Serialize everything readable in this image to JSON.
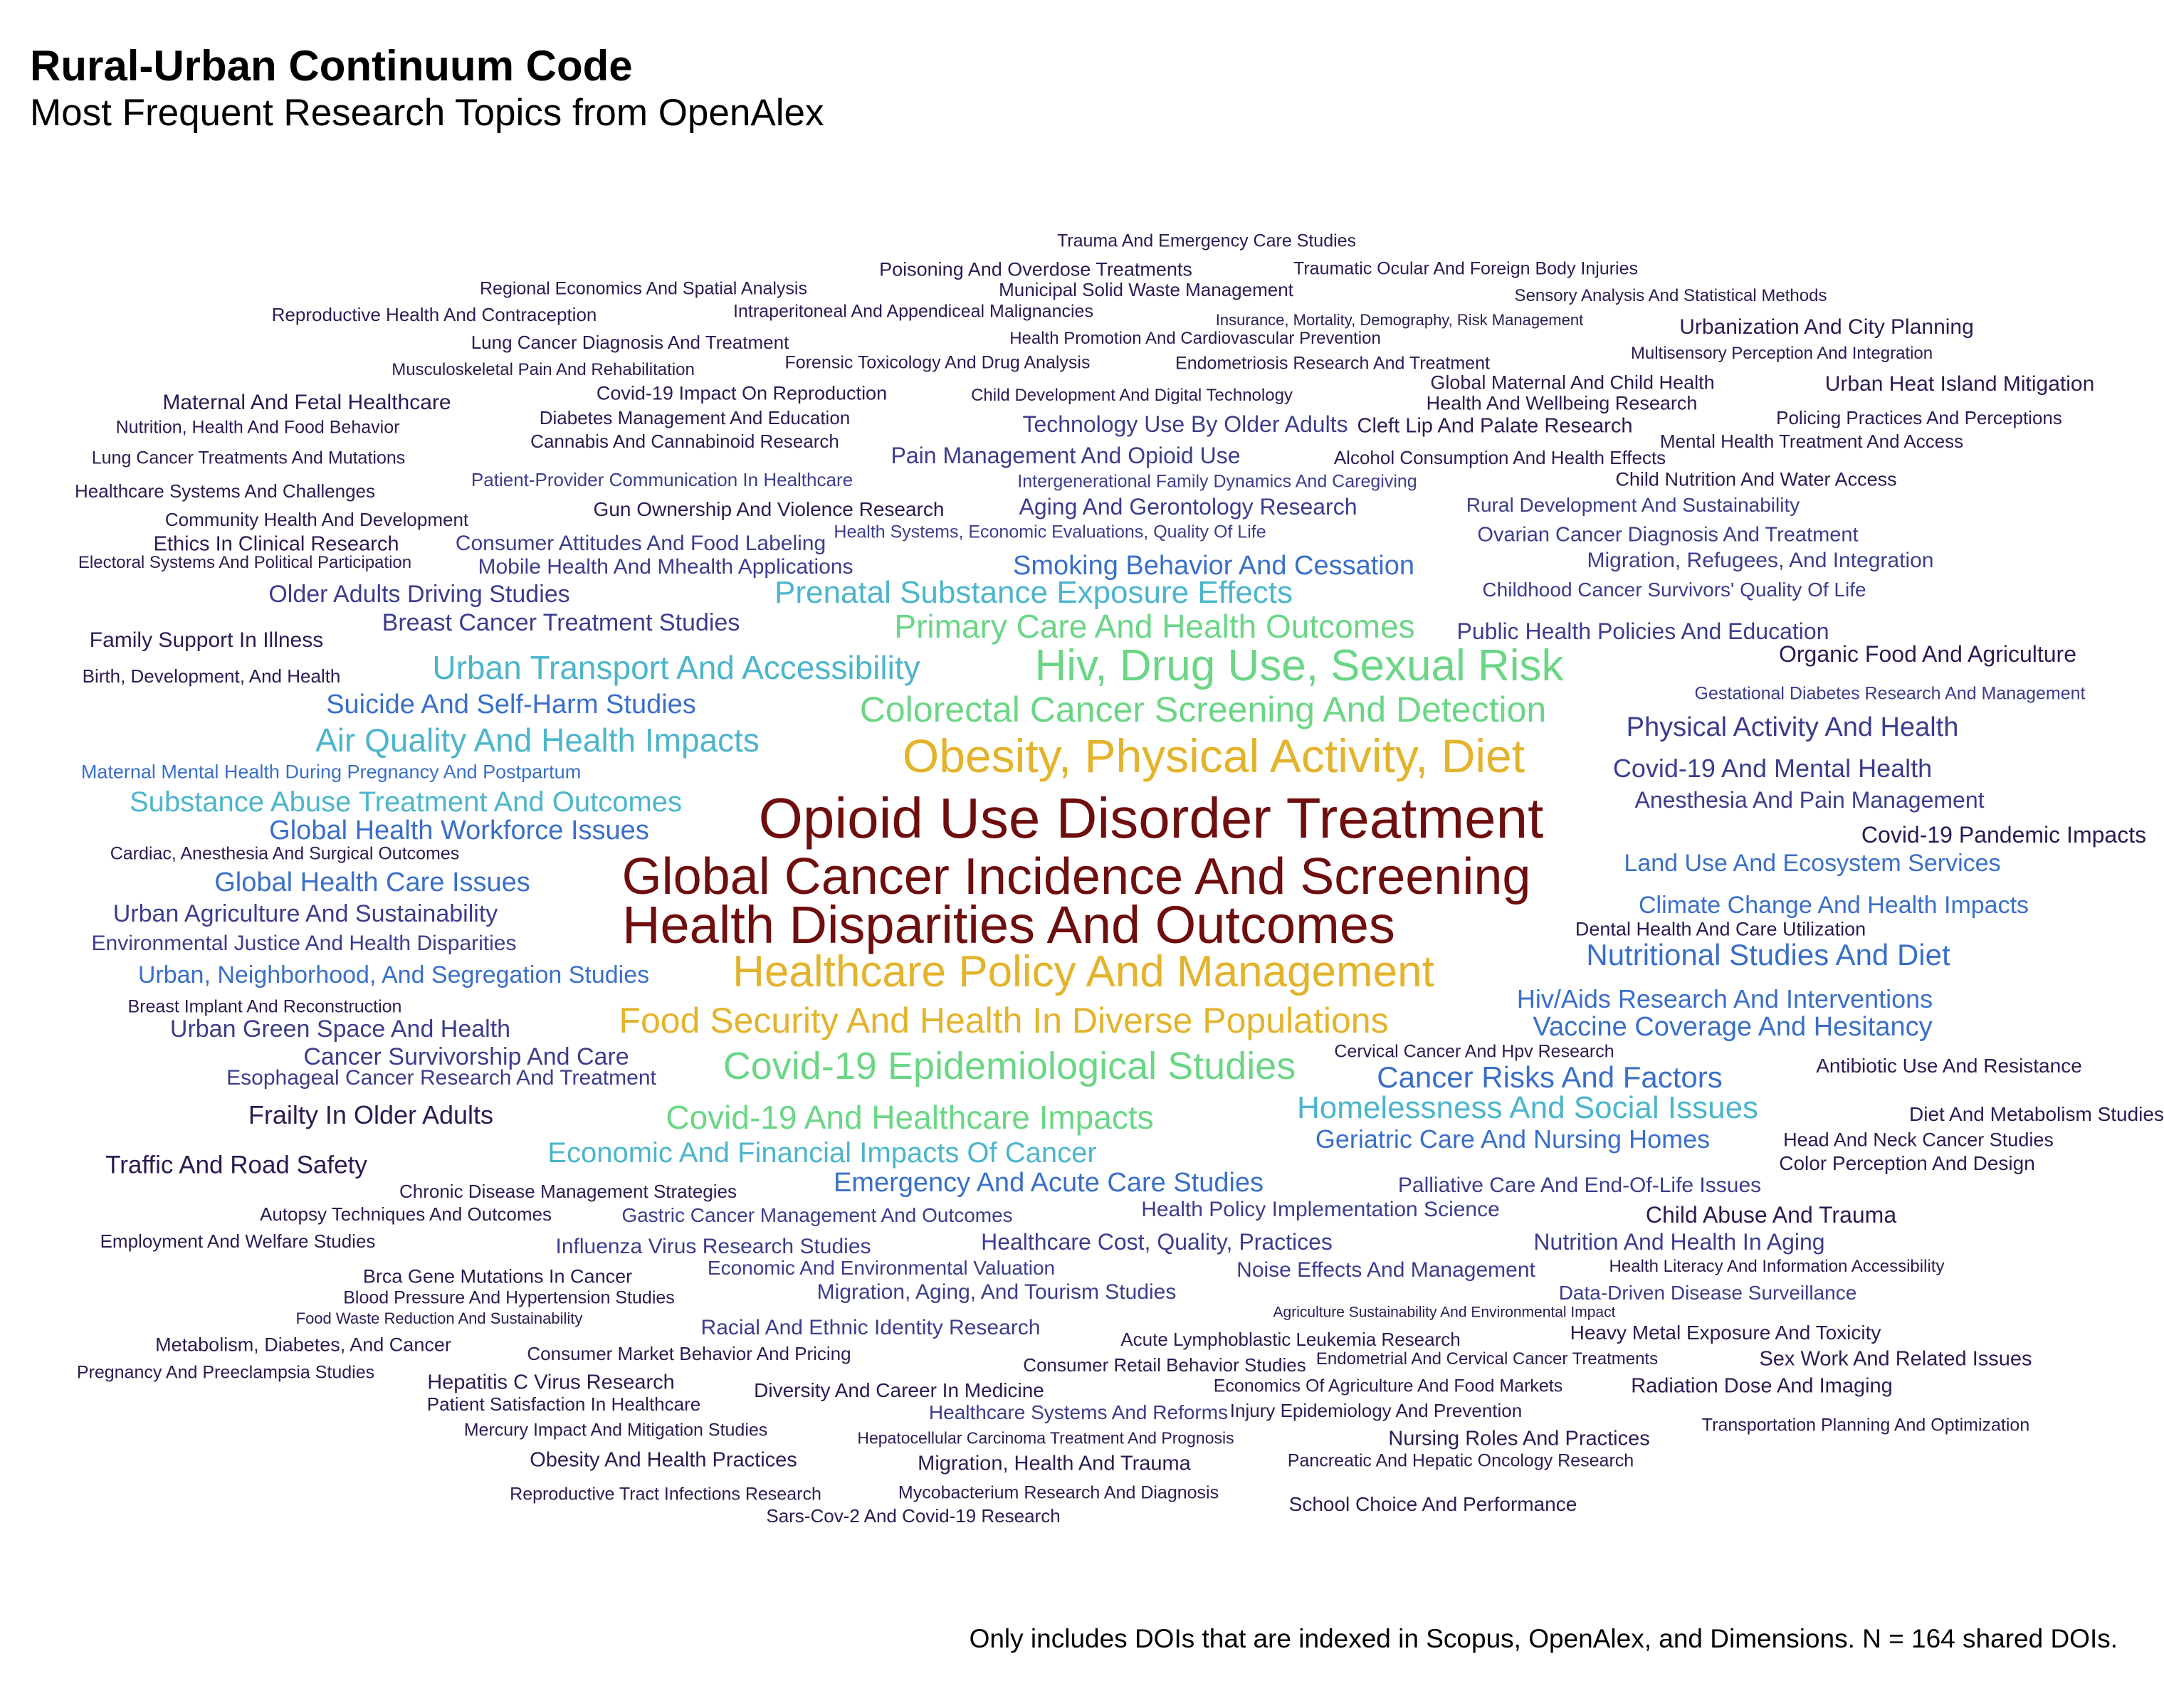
{
  "chart_data": {
    "type": "wordcloud",
    "title": "Rural-Urban Continuum Code",
    "subtitle": "Most Frequent Research Topics from OpenAlex",
    "caption": "Only includes DOIs that are indexed in Scopus, OpenAlex, and Dimensions. N = 164 shared DOIs.",
    "palette": {
      "tier_6": "#6e0e0e",
      "tier_5": "#e3b32c",
      "tier_4": "#6bd686",
      "tier_3": "#4cb5cc",
      "tier_2": "#3a6fc8",
      "tier_1": "#3b3d8c",
      "tier_0": "#2d1a52"
    },
    "words": [
      {
        "text": "Opioid Use Disorder Treatment",
        "tier": 6
      },
      {
        "text": "Global Cancer Incidence And Screening",
        "tier": 6
      },
      {
        "text": "Health Disparities And Outcomes",
        "tier": 6
      },
      {
        "text": "Obesity, Physical Activity, Diet",
        "tier": 5
      },
      {
        "text": "Healthcare Policy And Management",
        "tier": 5
      },
      {
        "text": "Food Security And Health In Diverse Populations",
        "tier": 5
      },
      {
        "text": "Hiv, Drug Use, Sexual Risk",
        "tier": 4
      },
      {
        "text": "Colorectal Cancer Screening And Detection",
        "tier": 4
      },
      {
        "text": "Primary Care And Health Outcomes",
        "tier": 4
      },
      {
        "text": "Covid-19 Epidemiological Studies",
        "tier": 4
      },
      {
        "text": "Covid-19 And Healthcare Impacts",
        "tier": 4
      },
      {
        "text": "Urban Transport And Accessibility",
        "tier": 3
      },
      {
        "text": "Prenatal Substance Exposure Effects",
        "tier": 3
      },
      {
        "text": "Air Quality And Health Impacts",
        "tier": 3
      },
      {
        "text": "Substance Abuse Treatment And Outcomes",
        "tier": 3
      },
      {
        "text": "Economic And Financial Impacts Of Cancer",
        "tier": 3
      },
      {
        "text": "Homelessness And Social Issues",
        "tier": 3
      },
      {
        "text": "Smoking Behavior And Cessation",
        "tier": 2
      },
      {
        "text": "Suicide And Self-Harm Studies",
        "tier": 2
      },
      {
        "text": "Global Health Workforce Issues",
        "tier": 2
      },
      {
        "text": "Global Health Care Issues",
        "tier": 2
      },
      {
        "text": "Urban, Neighborhood, And Segregation Studies",
        "tier": 2
      },
      {
        "text": "Nutritional Studies And Diet",
        "tier": 2
      },
      {
        "text": "Climate Change And Health Impacts",
        "tier": 2
      },
      {
        "text": "Hiv/Aids Research And Interventions",
        "tier": 2
      },
      {
        "text": "Vaccine Coverage And Hesitancy",
        "tier": 2
      },
      {
        "text": "Cancer Risks And Factors",
        "tier": 2
      },
      {
        "text": "Emergency And Acute Care Studies",
        "tier": 2
      },
      {
        "text": "Geriatric Care And Nursing Homes",
        "tier": 2
      },
      {
        "text": "Land Use And Ecosystem Services",
        "tier": 2
      },
      {
        "text": "Maternal Mental Health During Pregnancy And Postpartum",
        "tier": 2
      },
      {
        "text": "Physical Activity And Health",
        "tier": 1
      },
      {
        "text": "Covid-19 And Mental Health",
        "tier": 1
      },
      {
        "text": "Anesthesia And Pain Management",
        "tier": 1
      },
      {
        "text": "Urban Agriculture And Sustainability",
        "tier": 1
      },
      {
        "text": "Environmental Justice And Health Disparities",
        "tier": 1
      },
      {
        "text": "Urban Green Space And Health",
        "tier": 1
      },
      {
        "text": "Cancer Survivorship And Care",
        "tier": 1
      },
      {
        "text": "Breast Cancer Treatment Studies",
        "tier": 1
      },
      {
        "text": "Older Adults Driving Studies",
        "tier": 1
      },
      {
        "text": "Mobile Health And Mhealth Applications",
        "tier": 1
      },
      {
        "text": "Technology Use By Older Adults",
        "tier": 1
      },
      {
        "text": "Pain Management And Opioid Use",
        "tier": 1
      },
      {
        "text": "Aging And Gerontology Research",
        "tier": 1
      },
      {
        "text": "Public Health Policies And Education",
        "tier": 1
      },
      {
        "text": "Migration, Refugees, And Integration",
        "tier": 1
      },
      {
        "text": "Esophageal Cancer Research And Treatment",
        "tier": 1
      },
      {
        "text": "Palliative Care And End-Of-Life Issues",
        "tier": 1
      },
      {
        "text": "Health Policy Implementation Science",
        "tier": 1
      },
      {
        "text": "Healthcare Cost, Quality, Practices",
        "tier": 1
      },
      {
        "text": "Gastric Cancer Management And Outcomes",
        "tier": 1
      },
      {
        "text": "Influenza Virus Research Studies",
        "tier": 1
      },
      {
        "text": "Noise Effects And Management",
        "tier": 1
      },
      {
        "text": "Nutrition And Health In Aging",
        "tier": 1
      },
      {
        "text": "Migration, Aging, And Tourism Studies",
        "tier": 1
      },
      {
        "text": "Racial And Ethnic Identity Research",
        "tier": 1
      },
      {
        "text": "Health Systems, Economic Evaluations, Quality Of Life",
        "tier": 1
      },
      {
        "text": "Ovarian Cancer Diagnosis And Treatment",
        "tier": 1
      },
      {
        "text": "Rural Development And Sustainability",
        "tier": 1
      },
      {
        "text": "Intergenerational Family Dynamics And Caregiving",
        "tier": 1
      },
      {
        "text": "Patient-Provider Communication In Healthcare",
        "tier": 1
      },
      {
        "text": "Economic And Environmental Valuation",
        "tier": 1
      },
      {
        "text": "Healthcare Systems And Reforms",
        "tier": 1
      },
      {
        "text": "Data-Driven Disease Surveillance",
        "tier": 1
      },
      {
        "text": "Consumer Attitudes And Food Labeling",
        "tier": 1
      },
      {
        "text": "Gestational Diabetes Research And Management",
        "tier": 1
      },
      {
        "text": "Childhood Cancer Survivors' Quality Of Life",
        "tier": 1
      },
      {
        "text": "Community Health And Development",
        "tier": 0
      },
      {
        "text": "Trauma And Emergency Care Studies",
        "tier": 0
      },
      {
        "text": "Poisoning And Overdose Treatments",
        "tier": 0
      },
      {
        "text": "Traumatic Ocular And Foreign Body Injuries",
        "tier": 0
      },
      {
        "text": "Regional Economics And Spatial Analysis",
        "tier": 0
      },
      {
        "text": "Municipal Solid Waste Management",
        "tier": 0
      },
      {
        "text": "Sensory Analysis And Statistical Methods",
        "tier": 0
      },
      {
        "text": "Reproductive Health And Contraception",
        "tier": 0
      },
      {
        "text": "Intraperitoneal And Appendiceal Malignancies",
        "tier": 0
      },
      {
        "text": "Insurance, Mortality, Demography, Risk Management",
        "tier": 0
      },
      {
        "text": "Urbanization And City Planning",
        "tier": 0
      },
      {
        "text": "Lung Cancer Diagnosis And Treatment",
        "tier": 0
      },
      {
        "text": "Health Promotion And Cardiovascular Prevention",
        "tier": 0
      },
      {
        "text": "Multisensory Perception And Integration",
        "tier": 0
      },
      {
        "text": "Musculoskeletal Pain And Rehabilitation",
        "tier": 0
      },
      {
        "text": "Forensic Toxicology And Drug Analysis",
        "tier": 0
      },
      {
        "text": "Endometriosis Research And Treatment",
        "tier": 0
      },
      {
        "text": "Global Maternal And Child Health",
        "tier": 0
      },
      {
        "text": "Urban Heat Island Mitigation",
        "tier": 0
      },
      {
        "text": "Maternal And Fetal Healthcare",
        "tier": 0
      },
      {
        "text": "Covid-19 Impact On Reproduction",
        "tier": 0
      },
      {
        "text": "Child Development And Digital Technology",
        "tier": 0
      },
      {
        "text": "Health And Wellbeing Research",
        "tier": 0
      },
      {
        "text": "Diabetes Management And Education",
        "tier": 0
      },
      {
        "text": "Policing Practices And Perceptions",
        "tier": 0
      },
      {
        "text": "Nutrition, Health And Food Behavior",
        "tier": 0
      },
      {
        "text": "Cleft Lip And Palate Research",
        "tier": 0
      },
      {
        "text": "Cannabis And Cannabinoid Research",
        "tier": 0
      },
      {
        "text": "Mental Health Treatment And Access",
        "tier": 0
      },
      {
        "text": "Lung Cancer Treatments And Mutations",
        "tier": 0
      },
      {
        "text": "Alcohol Consumption And Health Effects",
        "tier": 0
      },
      {
        "text": "Child Nutrition And Water Access",
        "tier": 0
      },
      {
        "text": "Healthcare Systems And Challenges",
        "tier": 0
      },
      {
        "text": "Gun Ownership And Violence Research",
        "tier": 0
      },
      {
        "text": "Ethics In Clinical Research",
        "tier": 0
      },
      {
        "text": "Electoral Systems And Political Participation",
        "tier": 0
      },
      {
        "text": "Family Support In Illness",
        "tier": 0
      },
      {
        "text": "Organic Food And Agriculture",
        "tier": 0
      },
      {
        "text": "Birth, Development, And Health",
        "tier": 0
      },
      {
        "text": "Covid-19 Pandemic Impacts",
        "tier": 0
      },
      {
        "text": "Cardiac, Anesthesia And Surgical Outcomes",
        "tier": 0
      },
      {
        "text": "Dental Health And Care Utilization",
        "tier": 0
      },
      {
        "text": "Breast Implant And Reconstruction",
        "tier": 0
      },
      {
        "text": "Cervical Cancer And Hpv Research",
        "tier": 0
      },
      {
        "text": "Antibiotic Use And Resistance",
        "tier": 0
      },
      {
        "text": "Frailty In Older Adults",
        "tier": 0
      },
      {
        "text": "Diet And Metabolism Studies",
        "tier": 0
      },
      {
        "text": "Head And Neck Cancer Studies",
        "tier": 0
      },
      {
        "text": "Traffic And Road Safety",
        "tier": 0
      },
      {
        "text": "Color Perception And Design",
        "tier": 0
      },
      {
        "text": "Chronic Disease Management Strategies",
        "tier": 0
      },
      {
        "text": "Autopsy Techniques And Outcomes",
        "tier": 0
      },
      {
        "text": "Child Abuse And Trauma",
        "tier": 0
      },
      {
        "text": "Employment And Welfare Studies",
        "tier": 0
      },
      {
        "text": "Brca Gene Mutations In Cancer",
        "tier": 0
      },
      {
        "text": "Health Literacy And Information Accessibility",
        "tier": 0
      },
      {
        "text": "Blood Pressure And Hypertension Studies",
        "tier": 0
      },
      {
        "text": "Food Waste Reduction And Sustainability",
        "tier": 0
      },
      {
        "text": "Agriculture Sustainability And Environmental Impact",
        "tier": 0
      },
      {
        "text": "Acute Lymphoblastic Leukemia Research",
        "tier": 0
      },
      {
        "text": "Heavy Metal Exposure And Toxicity",
        "tier": 0
      },
      {
        "text": "Metabolism, Diabetes, And Cancer",
        "tier": 0
      },
      {
        "text": "Consumer Market Behavior And Pricing",
        "tier": 0
      },
      {
        "text": "Consumer Retail Behavior Studies",
        "tier": 0
      },
      {
        "text": "Endometrial And Cervical Cancer Treatments",
        "tier": 0
      },
      {
        "text": "Sex Work And Related Issues",
        "tier": 0
      },
      {
        "text": "Pregnancy And Preeclampsia Studies",
        "tier": 0
      },
      {
        "text": "Hepatitis C Virus Research",
        "tier": 0
      },
      {
        "text": "Diversity And Career In Medicine",
        "tier": 0
      },
      {
        "text": "Economics Of Agriculture And Food Markets",
        "tier": 0
      },
      {
        "text": "Radiation Dose And Imaging",
        "tier": 0
      },
      {
        "text": "Patient Satisfaction In Healthcare",
        "tier": 0
      },
      {
        "text": "Injury Epidemiology And Prevention",
        "tier": 0
      },
      {
        "text": "Mercury Impact And Mitigation Studies",
        "tier": 0
      },
      {
        "text": "Hepatocellular Carcinoma Treatment And Prognosis",
        "tier": 0
      },
      {
        "text": "Nursing Roles And Practices",
        "tier": 0
      },
      {
        "text": "Transportation Planning And Optimization",
        "tier": 0
      },
      {
        "text": "Obesity And Health Practices",
        "tier": 0
      },
      {
        "text": "Migration, Health And Trauma",
        "tier": 0
      },
      {
        "text": "Pancreatic And Hepatic Oncology Research",
        "tier": 0
      },
      {
        "text": "Reproductive Tract Infections Research",
        "tier": 0
      },
      {
        "text": "Mycobacterium Research And Diagnosis",
        "tier": 0
      },
      {
        "text": "School Choice And Performance",
        "tier": 0
      },
      {
        "text": "Sars-Cov-2 And Covid-19 Research",
        "tier": 0
      }
    ]
  }
}
